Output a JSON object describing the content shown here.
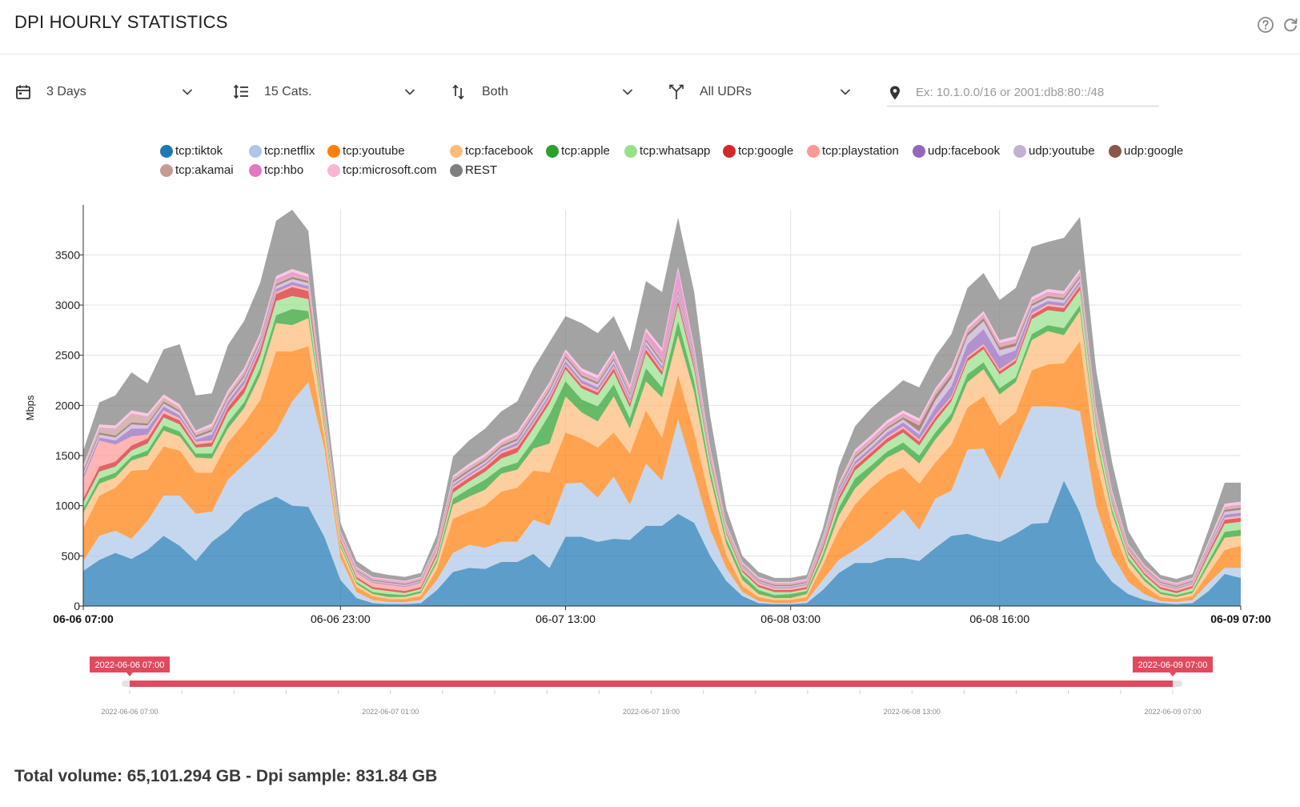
{
  "header": {
    "title": "DPI HOURLY STATISTICS",
    "icons": [
      "help-icon",
      "refresh-icon"
    ]
  },
  "filters": {
    "period": "3 Days",
    "categories": "15 Cats.",
    "direction": "Both",
    "udrs": "All UDRs",
    "ip_placeholder": "Ex: 10.1.0.0/16 or 2001:db8:80::/48",
    "icons": [
      "calendar-icon",
      "sort-list-icon",
      "up-down-arrows-icon",
      "merge-icon",
      "location-pin-icon"
    ]
  },
  "legend": [
    {
      "label": "tcp:tiktok",
      "color": "#1f77b4"
    },
    {
      "label": "tcp:netflix",
      "color": "#aec7e8"
    },
    {
      "label": "tcp:youtube",
      "color": "#ff7f0e"
    },
    {
      "label": "tcp:facebook",
      "color": "#ffbb78"
    },
    {
      "label": "tcp:apple",
      "color": "#2ca02c"
    },
    {
      "label": "tcp:whatsapp",
      "color": "#98df8a"
    },
    {
      "label": "tcp:google",
      "color": "#d62728"
    },
    {
      "label": "tcp:playstation",
      "color": "#ff9896"
    },
    {
      "label": "udp:facebook",
      "color": "#9467bd"
    },
    {
      "label": "udp:youtube",
      "color": "#c5b0d5"
    },
    {
      "label": "udp:google",
      "color": "#8c564b"
    },
    {
      "label": "tcp:akamai",
      "color": "#c49c94"
    },
    {
      "label": "tcp:hbo",
      "color": "#e377c2"
    },
    {
      "label": "tcp:microsoft.com",
      "color": "#f7b6d2"
    },
    {
      "label": "REST",
      "color": "#7f7f7f"
    }
  ],
  "chart_data": {
    "type": "area",
    "stacked": true,
    "ylabel": "Mbps",
    "ylim": [
      0,
      3950
    ],
    "yticks": [
      0,
      500,
      1000,
      1500,
      2000,
      2500,
      3000,
      3500
    ],
    "xticks": [
      {
        "i": 0,
        "label": "06-06 07:00",
        "bold": true
      },
      {
        "i": 16,
        "label": "06-06 23:00",
        "bold": false
      },
      {
        "i": 30,
        "label": "06-07 13:00",
        "bold": false
      },
      {
        "i": 44,
        "label": "06-08 03:00",
        "bold": false
      },
      {
        "i": 57,
        "label": "06-08 16:00",
        "bold": false
      },
      {
        "i": 72,
        "label": "06-09 07:00",
        "bold": true
      }
    ],
    "grid": true,
    "legend_position": "top",
    "series": [
      {
        "name": "tcp:tiktok",
        "values": [
          350,
          460,
          530,
          470,
          560,
          700,
          600,
          450,
          640,
          760,
          930,
          1020,
          1090,
          1000,
          990,
          690,
          260,
          80,
          30,
          20,
          20,
          30,
          160,
          340,
          380,
          370,
          440,
          440,
          520,
          380,
          690,
          690,
          640,
          670,
          660,
          800,
          800,
          920,
          830,
          500,
          250,
          100,
          30,
          20,
          20,
          30,
          160,
          330,
          430,
          430,
          480,
          480,
          450,
          580,
          700,
          720,
          670,
          640,
          720,
          820,
          830,
          1250,
          930,
          450,
          240,
          120,
          60,
          30,
          20,
          30,
          150,
          320,
          280
        ]
      },
      {
        "name": "tcp:netflix",
        "values": [
          100,
          240,
          220,
          200,
          290,
          400,
          500,
          470,
          300,
          500,
          480,
          540,
          650,
          1040,
          1240,
          880,
          220,
          60,
          30,
          20,
          20,
          30,
          100,
          190,
          230,
          210,
          200,
          200,
          340,
          420,
          530,
          540,
          440,
          620,
          350,
          620,
          450,
          940,
          490,
          260,
          130,
          40,
          20,
          10,
          10,
          20,
          100,
          130,
          130,
          240,
          330,
          480,
          310,
          490,
          450,
          840,
          900,
          620,
          910,
          1170,
          1160,
          730,
          1010,
          550,
          270,
          120,
          60,
          20,
          20,
          30,
          80,
          60,
          100
        ]
      },
      {
        "name": "tcp:youtube",
        "values": [
          330,
          400,
          430,
          680,
          510,
          490,
          450,
          410,
          390,
          370,
          410,
          490,
          800,
          500,
          360,
          110,
          70,
          50,
          40,
          30,
          30,
          40,
          110,
          340,
          330,
          420,
          500,
          540,
          490,
          530,
          510,
          440,
          500,
          440,
          510,
          530,
          430,
          440,
          410,
          290,
          130,
          60,
          40,
          30,
          30,
          40,
          150,
          300,
          450,
          510,
          500,
          420,
          460,
          360,
          460,
          420,
          520,
          540,
          300,
          360,
          420,
          440,
          700,
          450,
          280,
          140,
          80,
          40,
          30,
          40,
          100,
          180,
          220
        ]
      },
      {
        "name": "tcp:facebook",
        "values": [
          150,
          120,
          100,
          100,
          140,
          160,
          140,
          150,
          140,
          140,
          150,
          250,
          280,
          260,
          280,
          90,
          40,
          30,
          20,
          20,
          20,
          30,
          60,
          140,
          150,
          160,
          180,
          180,
          220,
          290,
          360,
          260,
          260,
          360,
          250,
          290,
          400,
          400,
          400,
          230,
          110,
          60,
          30,
          20,
          20,
          30,
          60,
          140,
          160,
          150,
          170,
          180,
          200,
          230,
          240,
          250,
          270,
          310,
          300,
          300,
          330,
          280,
          300,
          200,
          130,
          70,
          50,
          30,
          20,
          30,
          80,
          120,
          100
        ]
      },
      {
        "name": "tcp:apple",
        "values": [
          40,
          50,
          50,
          40,
          50,
          50,
          50,
          40,
          50,
          60,
          60,
          70,
          80,
          160,
          70,
          40,
          20,
          20,
          20,
          30,
          20,
          20,
          30,
          60,
          80,
          100,
          60,
          70,
          80,
          290,
          150,
          130,
          150,
          120,
          100,
          130,
          100,
          140,
          110,
          70,
          50,
          50,
          40,
          30,
          40,
          30,
          40,
          80,
          100,
          70,
          60,
          70,
          80,
          70,
          70,
          80,
          70,
          60,
          50,
          60,
          60,
          70,
          60,
          50,
          40,
          30,
          30,
          20,
          20,
          20,
          40,
          60,
          60
        ]
      },
      {
        "name": "tcp:whatsapp",
        "values": [
          60,
          70,
          60,
          60,
          70,
          80,
          70,
          60,
          70,
          100,
          90,
          120,
          140,
          130,
          120,
          50,
          30,
          30,
          30,
          30,
          20,
          20,
          40,
          60,
          70,
          80,
          90,
          100,
          120,
          110,
          120,
          110,
          110,
          120,
          110,
          150,
          120,
          160,
          120,
          80,
          50,
          30,
          30,
          30,
          20,
          20,
          50,
          70,
          80,
          90,
          90,
          100,
          100,
          110,
          120,
          130,
          130,
          140,
          140,
          150,
          150,
          160,
          150,
          110,
          60,
          40,
          30,
          30,
          20,
          30,
          60,
          80,
          80
        ]
      },
      {
        "name": "tcp:google",
        "values": [
          40,
          50,
          50,
          50,
          50,
          40,
          40,
          30,
          40,
          50,
          60,
          60,
          70,
          90,
          80,
          30,
          20,
          20,
          20,
          20,
          20,
          20,
          30,
          40,
          40,
          40,
          50,
          50,
          40,
          40,
          30,
          30,
          30,
          40,
          40,
          40,
          40,
          40,
          40,
          30,
          20,
          20,
          20,
          20,
          20,
          20,
          30,
          40,
          40,
          40,
          40,
          40,
          40,
          40,
          30,
          30,
          30,
          30,
          30,
          40,
          40,
          40,
          40,
          30,
          20,
          20,
          20,
          20,
          20,
          20,
          30,
          40,
          40
        ]
      },
      {
        "name": "tcp:playstation",
        "values": [
          200,
          260,
          170,
          90,
          40,
          30,
          20,
          30,
          20,
          20,
          30,
          20,
          20,
          20,
          20,
          20,
          30,
          40,
          40,
          40,
          40,
          40,
          30,
          20,
          20,
          20,
          20,
          20,
          20,
          20,
          20,
          20,
          20,
          20,
          20,
          20,
          20,
          20,
          20,
          20,
          20,
          20,
          20,
          20,
          20,
          20,
          20,
          20,
          20,
          20,
          20,
          20,
          20,
          20,
          20,
          20,
          20,
          20,
          20,
          20,
          20,
          20,
          20,
          20,
          20,
          20,
          20,
          20,
          20,
          20,
          20,
          20,
          20
        ]
      },
      {
        "name": "udp:facebook",
        "values": [
          30,
          30,
          40,
          80,
          60,
          40,
          30,
          20,
          60,
          40,
          40,
          30,
          30,
          30,
          30,
          20,
          10,
          10,
          10,
          10,
          10,
          10,
          10,
          20,
          20,
          20,
          20,
          30,
          30,
          30,
          30,
          30,
          30,
          30,
          30,
          30,
          30,
          30,
          30,
          20,
          10,
          10,
          10,
          10,
          10,
          10,
          20,
          30,
          30,
          30,
          40,
          40,
          50,
          80,
          100,
          120,
          150,
          130,
          80,
          40,
          30,
          30,
          30,
          20,
          20,
          10,
          10,
          10,
          10,
          10,
          20,
          30,
          30
        ]
      },
      {
        "name": "udp:youtube",
        "values": [
          30,
          30,
          30,
          40,
          30,
          30,
          30,
          20,
          30,
          30,
          30,
          30,
          30,
          30,
          30,
          20,
          10,
          10,
          10,
          10,
          10,
          10,
          10,
          20,
          20,
          20,
          20,
          20,
          30,
          30,
          30,
          30,
          30,
          30,
          30,
          30,
          30,
          30,
          30,
          20,
          10,
          10,
          10,
          10,
          10,
          10,
          20,
          20,
          30,
          30,
          30,
          30,
          30,
          70,
          80,
          80,
          80,
          60,
          40,
          30,
          30,
          30,
          30,
          20,
          20,
          10,
          10,
          10,
          10,
          10,
          20,
          30,
          30
        ]
      },
      {
        "name": "udp:google",
        "values": [
          20,
          20,
          20,
          20,
          20,
          20,
          20,
          20,
          20,
          20,
          20,
          20,
          20,
          20,
          20,
          10,
          10,
          10,
          10,
          10,
          10,
          10,
          10,
          20,
          20,
          20,
          20,
          20,
          20,
          20,
          20,
          20,
          20,
          20,
          20,
          20,
          20,
          20,
          20,
          10,
          10,
          10,
          10,
          10,
          10,
          10,
          10,
          20,
          20,
          20,
          20,
          20,
          60,
          50,
          40,
          30,
          30,
          30,
          30,
          20,
          20,
          20,
          20,
          20,
          10,
          10,
          10,
          10,
          10,
          10,
          10,
          20,
          20
        ]
      },
      {
        "name": "tcp:akamai",
        "values": [
          20,
          40,
          60,
          80,
          60,
          30,
          20,
          20,
          20,
          20,
          20,
          20,
          20,
          20,
          20,
          10,
          10,
          10,
          10,
          10,
          10,
          10,
          10,
          20,
          20,
          20,
          20,
          20,
          20,
          20,
          20,
          20,
          20,
          20,
          20,
          20,
          20,
          20,
          20,
          10,
          10,
          10,
          10,
          10,
          10,
          10,
          10,
          20,
          20,
          20,
          20,
          20,
          20,
          20,
          20,
          20,
          20,
          20,
          20,
          20,
          20,
          20,
          20,
          20,
          10,
          10,
          10,
          10,
          10,
          10,
          10,
          20,
          20
        ]
      },
      {
        "name": "tcp:hbo",
        "values": [
          10,
          10,
          10,
          10,
          10,
          10,
          10,
          10,
          10,
          10,
          20,
          20,
          30,
          30,
          20,
          10,
          10,
          10,
          10,
          10,
          10,
          10,
          10,
          10,
          10,
          10,
          10,
          20,
          20,
          20,
          20,
          20,
          20,
          30,
          30,
          60,
          80,
          190,
          40,
          20,
          10,
          10,
          10,
          10,
          10,
          10,
          10,
          10,
          20,
          20,
          20,
          20,
          20,
          20,
          20,
          20,
          20,
          20,
          20,
          20,
          20,
          20,
          20,
          20,
          10,
          10,
          10,
          10,
          10,
          10,
          10,
          10,
          10
        ]
      },
      {
        "name": "tcp:microsoft.com",
        "values": [
          20,
          30,
          30,
          30,
          30,
          30,
          30,
          20,
          30,
          30,
          30,
          30,
          30,
          30,
          30,
          20,
          10,
          10,
          10,
          10,
          10,
          10,
          10,
          20,
          30,
          30,
          30,
          30,
          30,
          30,
          30,
          30,
          30,
          30,
          30,
          30,
          30,
          30,
          30,
          20,
          10,
          10,
          10,
          10,
          10,
          10,
          10,
          20,
          30,
          30,
          30,
          30,
          30,
          30,
          30,
          30,
          30,
          30,
          30,
          30,
          30,
          30,
          30,
          20,
          20,
          10,
          10,
          10,
          10,
          10,
          20,
          30,
          30
        ]
      },
      {
        "name": "REST",
        "values": [
          150,
          220,
          300,
          380,
          300,
          450,
          600,
          350,
          300,
          450,
          470,
          500,
          550,
          590,
          430,
          180,
          80,
          60,
          50,
          40,
          40,
          40,
          90,
          190,
          230,
          250,
          280,
          300,
          390,
          400,
          330,
          450,
          420,
          340,
          340,
          470,
          560,
          490,
          540,
          310,
          150,
          60,
          50,
          40,
          40,
          40,
          80,
          160,
          230,
          270,
          260,
          300,
          310,
          320,
          330,
          380,
          380,
          400,
          480,
          500,
          470,
          530,
          520,
          380,
          280,
          130,
          70,
          40,
          40,
          40,
          110,
          210,
          190
        ]
      }
    ]
  },
  "navigator": {
    "start_label": "2022-06-06 07:00",
    "end_label": "2022-06-09 07:00",
    "axis_labels": [
      "2022-06-06 07:00",
      "2022-06-07 01:00",
      "2022-06-07 19:00",
      "2022-06-08 13:00",
      "2022-06-09 07:00"
    ],
    "accent_color": "#e04a5f"
  },
  "summary": {
    "total_volume": "Total volume: 65,101.294 GB - Dpi sample: 831.84 GB"
  }
}
